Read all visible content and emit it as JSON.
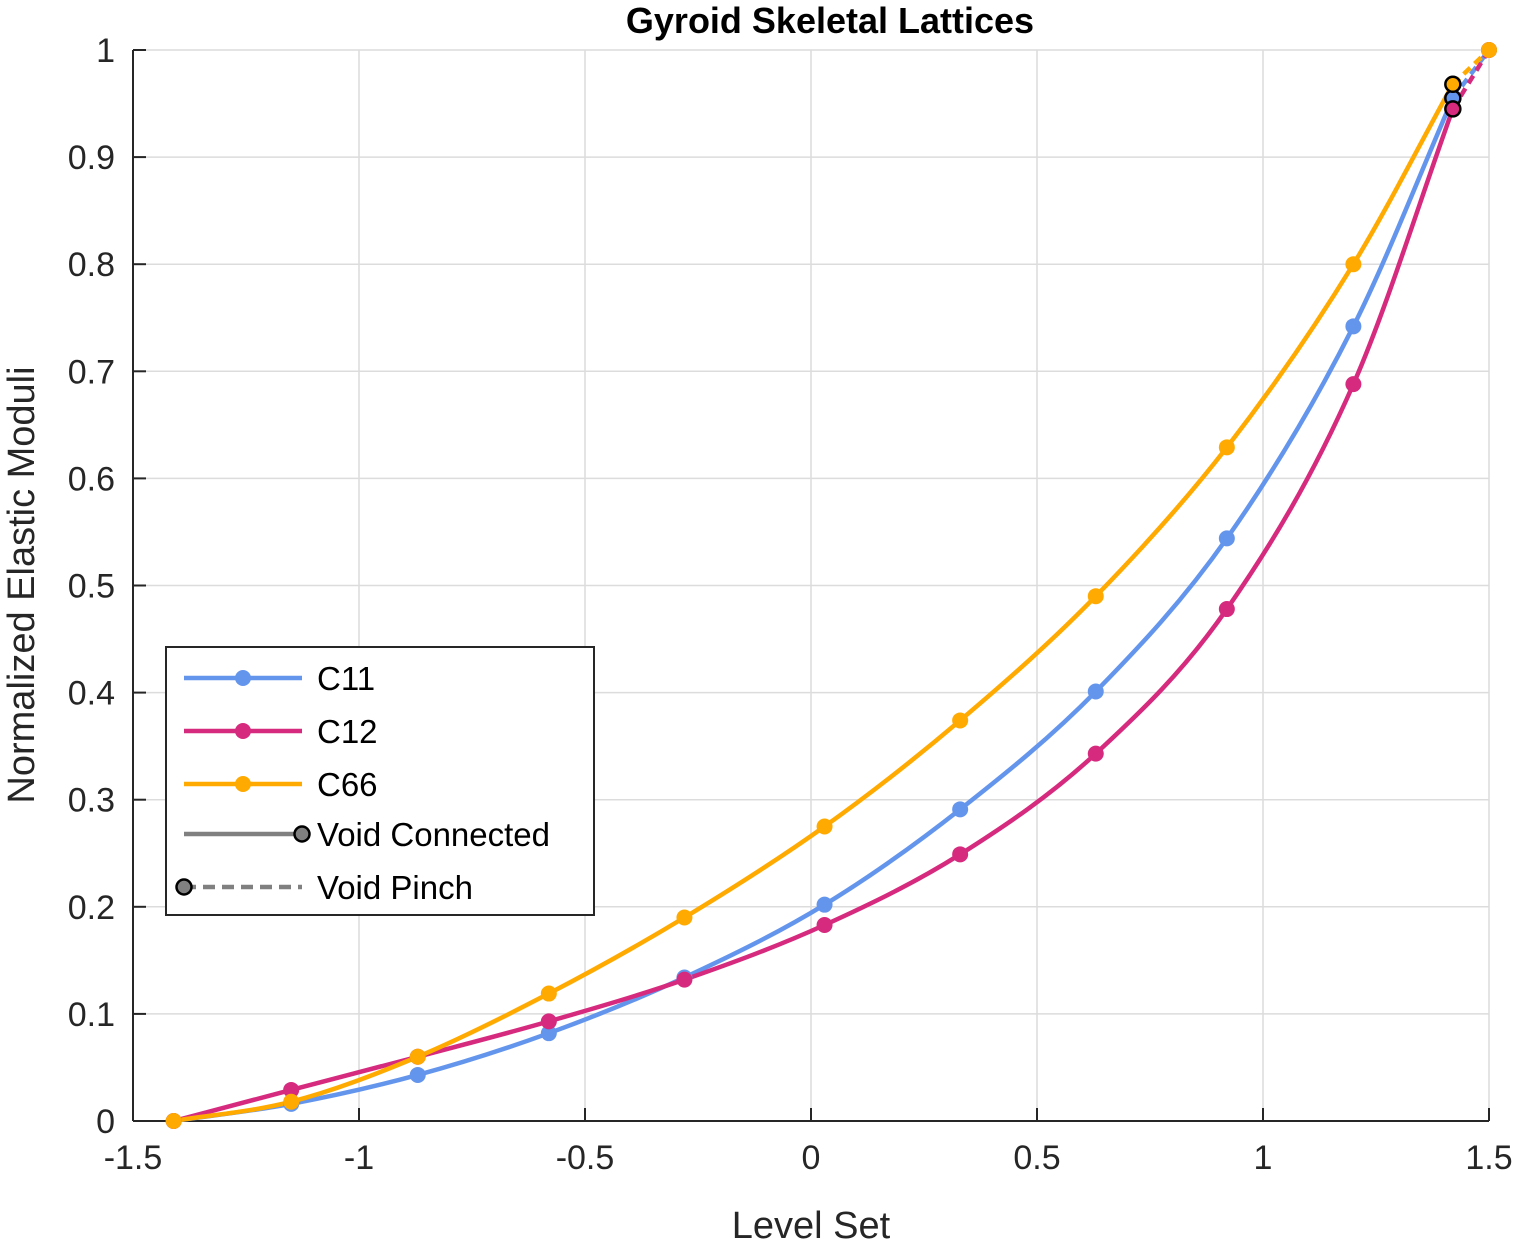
{
  "chart_data": {
    "type": "line",
    "title": "Gyroid Skeletal Lattices",
    "xlabel": "Level Set",
    "ylabel": "Normalized Elastic Moduli",
    "xlim": [
      -1.5,
      1.5
    ],
    "ylim": [
      0,
      1
    ],
    "xticks": [
      -1.5,
      -1,
      -0.5,
      0,
      0.5,
      1,
      1.5
    ],
    "xtick_labels": [
      "-1.5",
      "-1",
      "-0.5",
      "0",
      "0.5",
      "1",
      "1.5"
    ],
    "yticks": [
      0,
      0.1,
      0.2,
      0.3,
      0.4,
      0.5,
      0.6,
      0.7,
      0.8,
      0.9,
      1
    ],
    "ytick_labels": [
      "0",
      "0.1",
      "0.2",
      "0.3",
      "0.4",
      "0.5",
      "0.6",
      "0.7",
      "0.8",
      "0.9",
      "1"
    ],
    "grid": true,
    "legend_position": "lower-left",
    "x": [
      -1.41,
      -1.15,
      -0.87,
      -0.58,
      -0.28,
      0.03,
      0.33,
      0.63,
      0.92,
      1.2,
      1.42
    ],
    "series": [
      {
        "name": "C11",
        "color": "#6495ED",
        "values": [
          0.0,
          0.016,
          0.043,
          0.082,
          0.134,
          0.202,
          0.291,
          0.401,
          0.544,
          0.742,
          0.955
        ],
        "pinch_x": 1.42,
        "pinch_y": 0.955,
        "end_x": 1.5,
        "end_y": 1.0
      },
      {
        "name": "C12",
        "color": "#D62A7E",
        "values": [
          0.0,
          0.029,
          0.06,
          0.093,
          0.132,
          0.183,
          0.249,
          0.343,
          0.478,
          0.688,
          0.945
        ],
        "pinch_x": 1.42,
        "pinch_y": 0.945,
        "end_x": 1.5,
        "end_y": 1.0
      },
      {
        "name": "C66",
        "color": "#FFAA00",
        "values": [
          0.0,
          0.018,
          0.06,
          0.119,
          0.19,
          0.275,
          0.374,
          0.49,
          0.629,
          0.8,
          0.968
        ],
        "pinch_x": 1.42,
        "pinch_y": 0.968,
        "end_x": 1.5,
        "end_y": 1.0
      }
    ],
    "legend": [
      {
        "label": "C11",
        "kind": "series",
        "color": "#6495ED"
      },
      {
        "label": "C12",
        "kind": "series",
        "color": "#D62A7E"
      },
      {
        "label": "C66",
        "kind": "series",
        "color": "#FFAA00"
      },
      {
        "label": "Void Connected",
        "kind": "solid-marker-right",
        "color": "#808080"
      },
      {
        "label": "Void Pinch",
        "kind": "dashed-marker-left",
        "color": "#808080"
      }
    ]
  }
}
